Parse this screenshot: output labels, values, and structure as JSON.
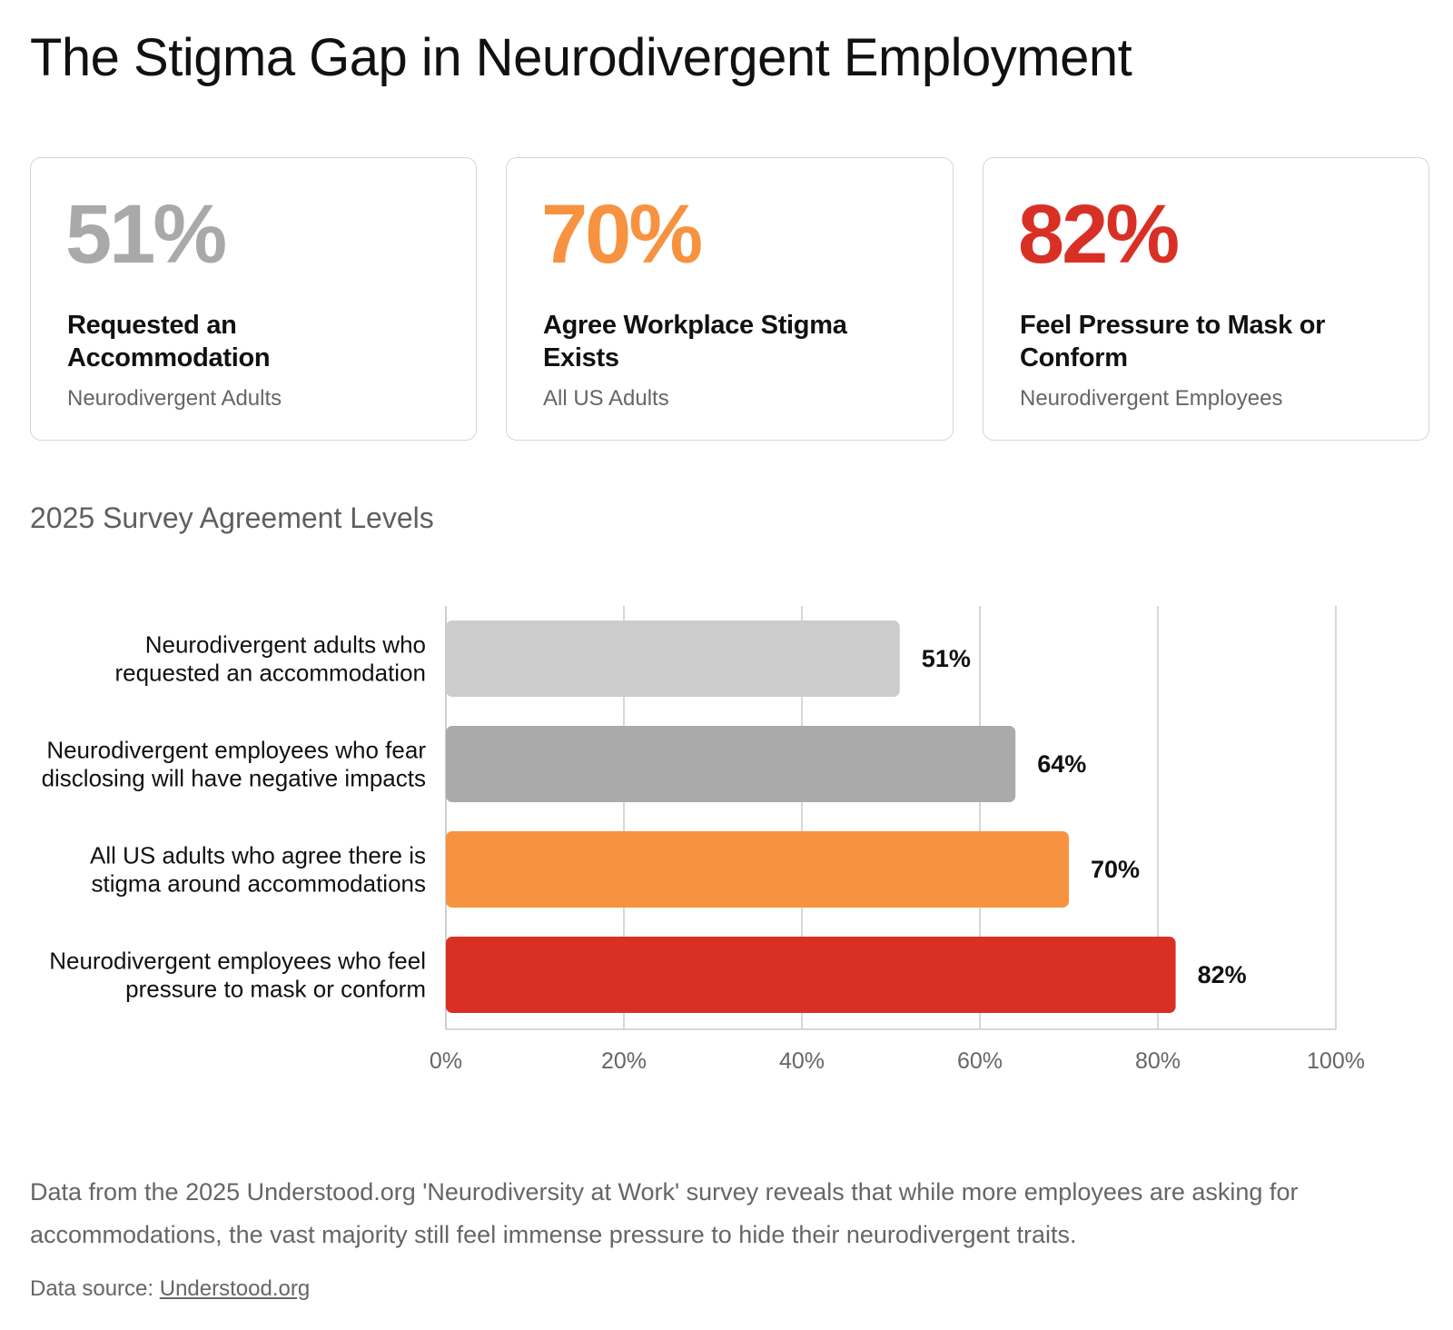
{
  "title": "The Stigma Gap in Neurodivergent Employment",
  "stat_cards": [
    {
      "value": "51%",
      "label": "Requested an Accommodation",
      "sublabel": "Neurodivergent Adults",
      "color": "#a9a9a9"
    },
    {
      "value": "70%",
      "label": "Agree Workplace Stigma Exists",
      "sublabel": "All US Adults",
      "color": "#f79240"
    },
    {
      "value": "82%",
      "label": "Feel Pressure to Mask or Conform",
      "sublabel": "Neurodivergent Employees",
      "color": "#d93026"
    }
  ],
  "chart_data": {
    "type": "bar",
    "orientation": "horizontal",
    "title": "2025 Survey Agreement Levels",
    "categories": [
      [
        "Neurodivergent adults who",
        "requested an accommodation"
      ],
      [
        "Neurodivergent employees who fear",
        "disclosing will have negative impacts"
      ],
      [
        "All US adults who agree there is",
        "stigma around accommodations"
      ],
      [
        "Neurodivergent employees who feel",
        "pressure to mask or conform"
      ]
    ],
    "values": [
      51,
      64,
      70,
      82
    ],
    "data_labels": [
      "51%",
      "64%",
      "70%",
      "82%"
    ],
    "colors": [
      "#cccccc",
      "#aaaaaa",
      "#f79240",
      "#d93026"
    ],
    "xlim": [
      0,
      100
    ],
    "xticks": [
      0,
      20,
      40,
      60,
      80,
      100
    ],
    "xtick_labels": [
      "0%",
      "20%",
      "40%",
      "60%",
      "80%",
      "100%"
    ],
    "grid": true,
    "legend": "none",
    "xlabel": "",
    "ylabel": ""
  },
  "description": "Data from the 2025 Understood.org 'Neurodiversity at Work' survey reveals that while more employees are asking for accommodations, the vast majority still feel immense pressure to hide their neurodivergent traits.",
  "source": {
    "prefix": "Data source: ",
    "link_text": "Understood.org"
  }
}
